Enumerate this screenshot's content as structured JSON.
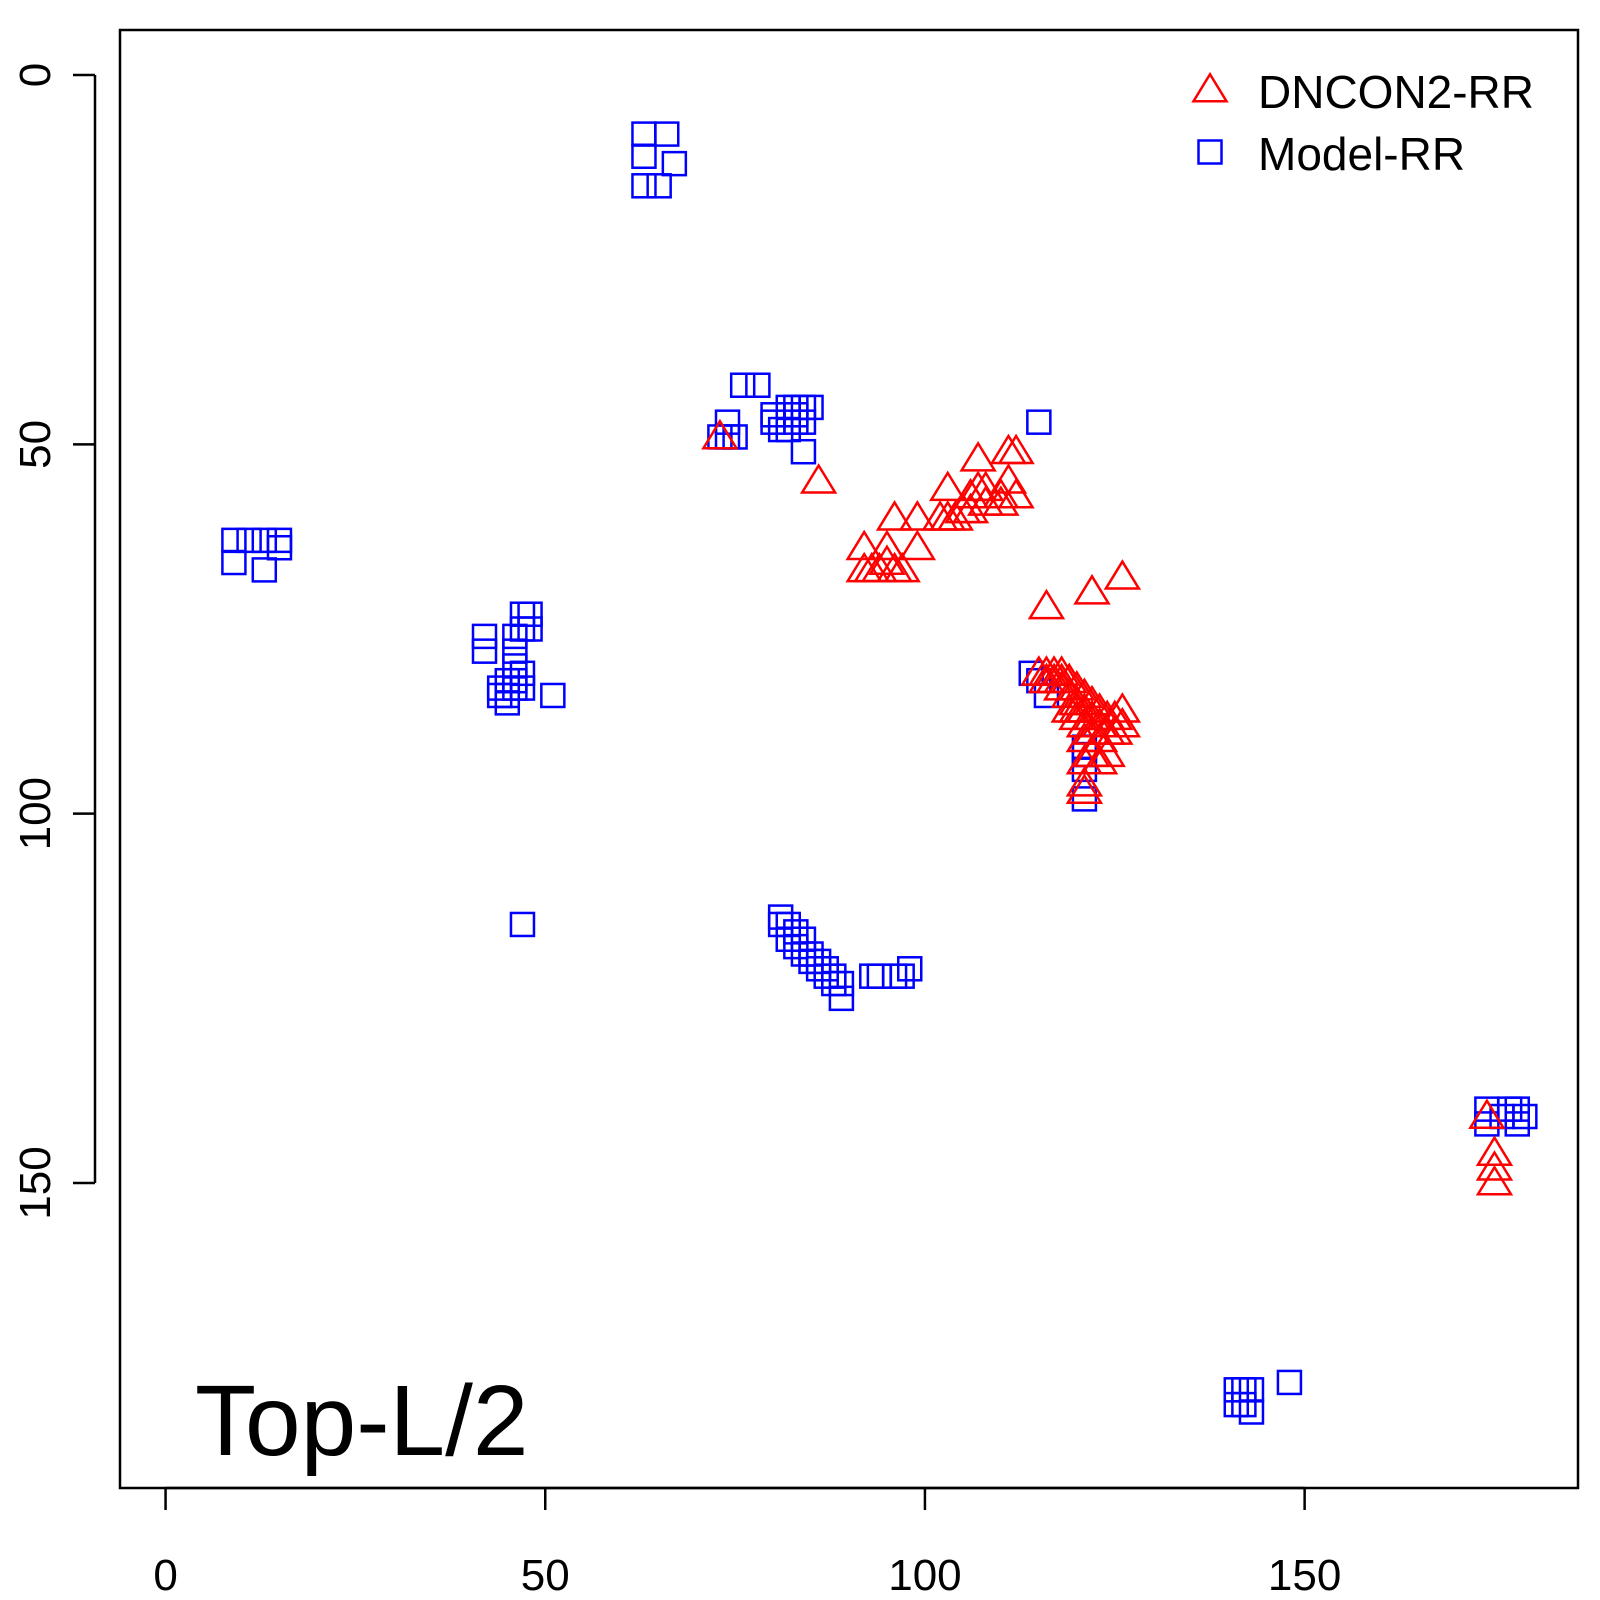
{
  "chart_data": {
    "type": "scatter",
    "title": "",
    "xlabel": "",
    "ylabel": "",
    "annotation": "Top-L/2",
    "xlim": [
      -6,
      186
    ],
    "ylim": [
      0,
      175
    ],
    "y_inverted": true,
    "x_ticks": [
      0,
      50,
      100,
      150
    ],
    "y_ticks": [
      0,
      50,
      100,
      150
    ],
    "grid": false,
    "legend_position": "top-right",
    "series": [
      {
        "name": "DNCON2-RR",
        "marker": "triangle",
        "color": "#ff0000",
        "points": [
          [
            73,
            49
          ],
          [
            86,
            55
          ],
          [
            92,
            64
          ],
          [
            92,
            67
          ],
          [
            93,
            67
          ],
          [
            94,
            67
          ],
          [
            95,
            66
          ],
          [
            95,
            64
          ],
          [
            96,
            67
          ],
          [
            97,
            67
          ],
          [
            96,
            60
          ],
          [
            99,
            64
          ],
          [
            99,
            60
          ],
          [
            102,
            60
          ],
          [
            103,
            60
          ],
          [
            103,
            56
          ],
          [
            104,
            60
          ],
          [
            105,
            59
          ],
          [
            106,
            59
          ],
          [
            106,
            57
          ],
          [
            107,
            56
          ],
          [
            107,
            52
          ],
          [
            108,
            58
          ],
          [
            108,
            56
          ],
          [
            110,
            57
          ],
          [
            110,
            58
          ],
          [
            111,
            51
          ],
          [
            111,
            55
          ],
          [
            112,
            51
          ],
          [
            112,
            57
          ],
          [
            116,
            72
          ],
          [
            122,
            70
          ],
          [
            126,
            68
          ],
          [
            115,
            81
          ],
          [
            116,
            81
          ],
          [
            116,
            82
          ],
          [
            117,
            81
          ],
          [
            117,
            82
          ],
          [
            118,
            81
          ],
          [
            118,
            82
          ],
          [
            118,
            83
          ],
          [
            119,
            82
          ],
          [
            119,
            84
          ],
          [
            119,
            86
          ],
          [
            120,
            83
          ],
          [
            120,
            85
          ],
          [
            120,
            86
          ],
          [
            120,
            87
          ],
          [
            121,
            84
          ],
          [
            121,
            86
          ],
          [
            121,
            88
          ],
          [
            121,
            90
          ],
          [
            121,
            93
          ],
          [
            121,
            96
          ],
          [
            121,
            97
          ],
          [
            122,
            85
          ],
          [
            122,
            87
          ],
          [
            122,
            89
          ],
          [
            122,
            92
          ],
          [
            123,
            86
          ],
          [
            123,
            88
          ],
          [
            123,
            90
          ],
          [
            123,
            93
          ],
          [
            124,
            87
          ],
          [
            124,
            89
          ],
          [
            124,
            92
          ],
          [
            125,
            87
          ],
          [
            125,
            89
          ],
          [
            126,
            86
          ],
          [
            126,
            88
          ],
          [
            174,
            141
          ],
          [
            175,
            148
          ],
          [
            175,
            146
          ],
          [
            175,
            150
          ]
        ]
      },
      {
        "name": "Model-RR",
        "marker": "square",
        "color": "#0000ff",
        "points": [
          [
            63,
            8
          ],
          [
            66,
            8
          ],
          [
            63,
            11
          ],
          [
            67,
            12
          ],
          [
            63,
            15
          ],
          [
            65,
            15
          ],
          [
            76,
            42
          ],
          [
            78,
            42
          ],
          [
            74,
            47
          ],
          [
            80,
            46
          ],
          [
            80,
            47
          ],
          [
            82,
            45
          ],
          [
            83,
            45
          ],
          [
            84,
            45
          ],
          [
            85,
            45
          ],
          [
            82,
            46
          ],
          [
            82,
            48
          ],
          [
            83,
            46
          ],
          [
            83,
            47
          ],
          [
            84,
            47
          ],
          [
            81,
            48
          ],
          [
            74,
            49
          ],
          [
            73,
            49
          ],
          [
            75,
            49
          ],
          [
            84,
            51
          ],
          [
            115,
            47
          ],
          [
            9,
            63
          ],
          [
            11,
            63
          ],
          [
            13,
            63
          ],
          [
            15,
            63
          ],
          [
            15,
            64
          ],
          [
            9,
            66
          ],
          [
            13,
            67
          ],
          [
            42,
            76
          ],
          [
            42,
            78
          ],
          [
            47,
            73
          ],
          [
            48,
            73
          ],
          [
            48,
            75
          ],
          [
            47,
            75
          ],
          [
            46,
            76
          ],
          [
            46,
            78
          ],
          [
            46,
            80
          ],
          [
            46,
            82
          ],
          [
            47,
            81
          ],
          [
            44,
            83
          ],
          [
            44,
            84
          ],
          [
            45,
            82
          ],
          [
            45,
            84
          ],
          [
            45,
            85
          ],
          [
            46,
            83
          ],
          [
            47,
            83
          ],
          [
            51,
            84
          ],
          [
            47,
            115
          ],
          [
            114,
            81
          ],
          [
            115,
            82
          ],
          [
            116,
            84
          ],
          [
            121,
            91
          ],
          [
            121,
            92
          ],
          [
            121,
            94
          ],
          [
            121,
            98
          ],
          [
            81,
            114
          ],
          [
            82,
            115
          ],
          [
            83,
            116
          ],
          [
            84,
            117
          ],
          [
            85,
            119
          ],
          [
            86,
            120
          ],
          [
            87,
            121
          ],
          [
            88,
            122
          ],
          [
            89,
            123
          ],
          [
            81,
            115
          ],
          [
            82,
            117
          ],
          [
            83,
            118
          ],
          [
            84,
            119
          ],
          [
            85,
            120
          ],
          [
            86,
            121
          ],
          [
            87,
            122
          ],
          [
            88,
            123
          ],
          [
            89,
            125
          ],
          [
            93,
            122
          ],
          [
            94,
            122
          ],
          [
            96,
            122
          ],
          [
            97,
            122
          ],
          [
            98,
            121
          ],
          [
            174,
            140
          ],
          [
            174,
            142
          ],
          [
            176,
            141
          ],
          [
            177,
            140
          ],
          [
            178,
            140
          ],
          [
            179,
            141
          ],
          [
            178,
            142
          ],
          [
            141,
            178
          ],
          [
            141,
            180
          ],
          [
            142,
            178
          ],
          [
            142,
            180
          ],
          [
            143,
            178
          ],
          [
            143,
            181
          ],
          [
            148,
            177
          ]
        ]
      }
    ]
  }
}
